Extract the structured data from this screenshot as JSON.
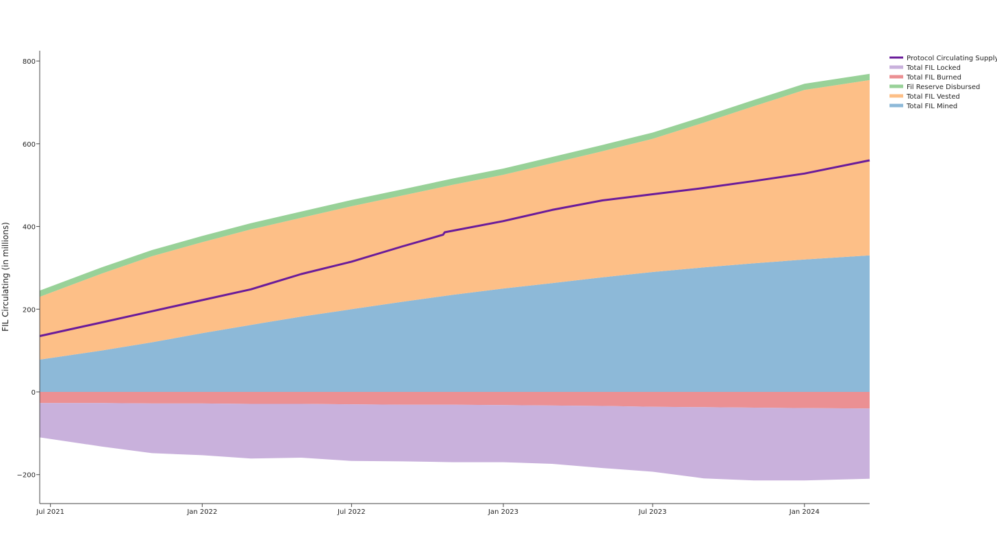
{
  "chart_data": {
    "type": "area",
    "title": "",
    "xlabel": "",
    "ylabel": "FIL Circulating (in millions)",
    "x_ticks": [
      "Jul 2021",
      "Jan 2022",
      "Jul 2022",
      "Jan 2023",
      "Jul 2023",
      "Jan 2024"
    ],
    "y_ticks": [
      "800",
      "600",
      "400",
      "200",
      "0",
      "−200"
    ],
    "ylim": [
      -270,
      825
    ],
    "xlim": [
      "2021-06-18",
      "2024-03-20"
    ],
    "legend_position": "top-right",
    "x": [
      "2021-06-18",
      "2021-09-01",
      "2021-11-01",
      "2022-01-01",
      "2022-03-01",
      "2022-05-01",
      "2022-07-01",
      "2022-09-01",
      "2022-11-01",
      "2023-01-01",
      "2023-03-01",
      "2023-05-01",
      "2023-07-01",
      "2023-09-01",
      "2023-11-01",
      "2024-01-01",
      "2024-03-20"
    ],
    "stack_positive": [
      {
        "name": "Total FIL Mined",
        "color": "#8db9d8",
        "values": [
          78,
          100,
          120,
          142,
          162,
          182,
          200,
          218,
          235,
          250,
          263,
          277,
          290,
          301,
          311,
          320,
          330
        ]
      },
      {
        "name": "Total FIL Vested",
        "color": "#fdbf87",
        "values": [
          152,
          186,
          208,
          220,
          231,
          239,
          249,
          257,
          266,
          275,
          290,
          305,
          322,
          350,
          380,
          410,
          424
        ]
      },
      {
        "name": "Fil Reserve Disbursed",
        "color": "#98d198",
        "values": [
          15,
          15,
          15,
          15,
          15,
          15,
          15,
          15,
          15,
          15,
          15,
          15,
          15,
          15,
          15,
          15,
          15
        ]
      }
    ],
    "stack_negative": [
      {
        "name": "Total FIL Burned",
        "color": "#eb9093",
        "values": [
          -27,
          -27,
          -28,
          -28,
          -29,
          -29,
          -30,
          -31,
          -31,
          -32,
          -33,
          -34,
          -36,
          -37,
          -38,
          -39,
          -40
        ]
      },
      {
        "name": "Total FIL Locked",
        "color": "#c9b1dc",
        "values": [
          -83,
          -105,
          -120,
          -125,
          -132,
          -130,
          -137,
          -137,
          -139,
          -138,
          -141,
          -150,
          -157,
          -172,
          -176,
          -175,
          -170
        ]
      }
    ],
    "line_series": {
      "name": "Protocol Circulating Supply",
      "color": "#6a1b9a",
      "x": [
        "2021-06-18",
        "2021-09-01",
        "2021-11-01",
        "2022-01-01",
        "2022-03-01",
        "2022-05-01",
        "2022-07-01",
        "2022-09-01",
        "2022-10-20",
        "2022-10-22",
        "2023-01-01",
        "2023-03-01",
        "2023-05-01",
        "2023-07-01",
        "2023-09-01",
        "2023-11-01",
        "2024-01-01",
        "2024-03-20"
      ],
      "values": [
        135,
        168,
        195,
        222,
        248,
        285,
        315,
        352,
        380,
        386,
        413,
        440,
        463,
        478,
        493,
        510,
        528,
        560
      ]
    },
    "legend": [
      "Protocol Circulating Supply",
      "Total FIL Locked",
      "Total FIL Burned",
      "Fil Reserve Disbursed",
      "Total FIL Vested",
      "Total FIL Mined"
    ]
  }
}
